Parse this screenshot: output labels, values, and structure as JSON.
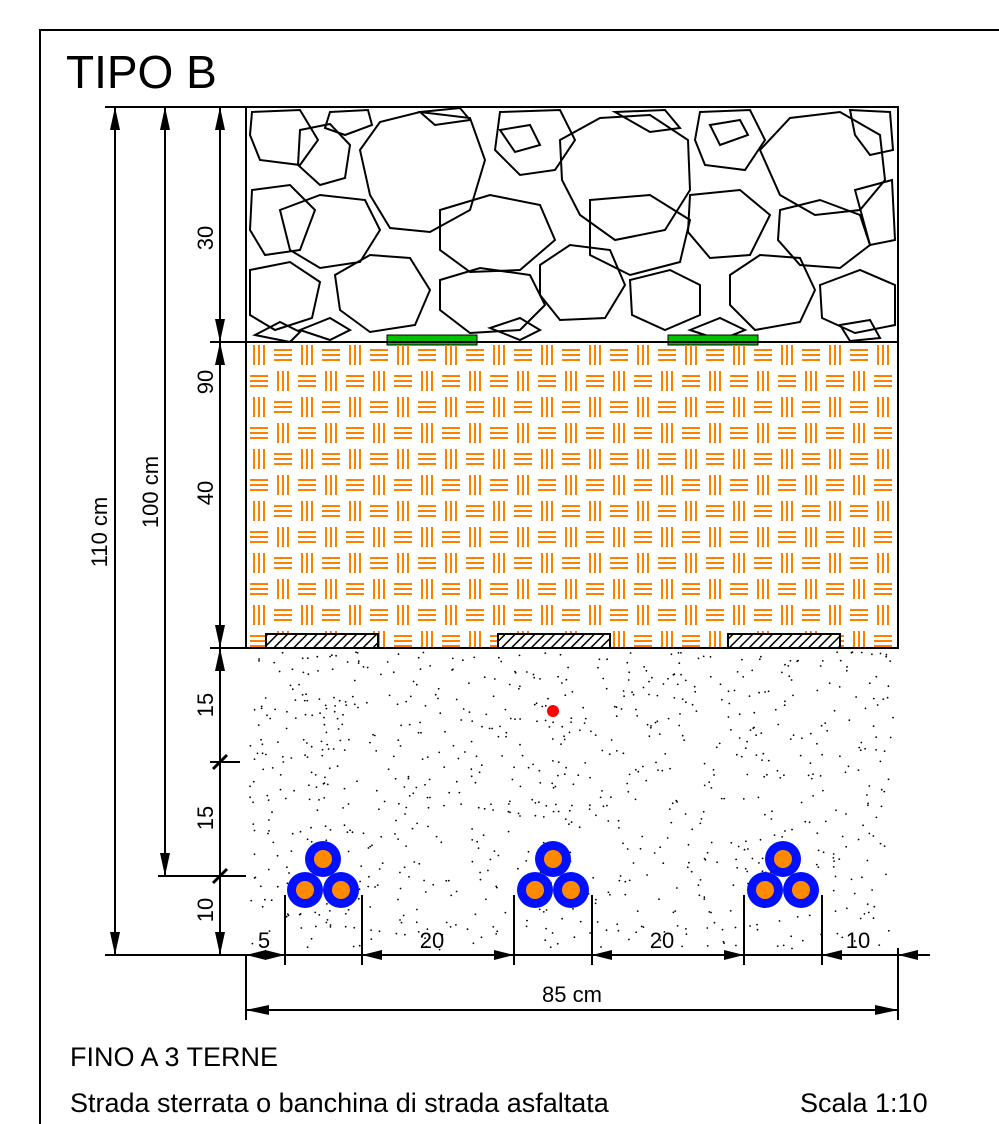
{
  "title": "TIPO B",
  "layers": [
    {
      "name": "pavimentazione-pietrame",
      "thickness": "30"
    },
    {
      "name": "riempimento",
      "thickness": "40"
    },
    {
      "name": "sabbia",
      "thickness": "15"
    },
    {
      "name": "sabbia",
      "thickness": "15"
    },
    {
      "name": "sabbia",
      "thickness": "10"
    }
  ],
  "dimensions": {
    "total_110": "110 cm",
    "total_100": "100 cm",
    "depth_90": "90",
    "layer_30": "30",
    "layer_40": "40",
    "layer_15a": "15",
    "layer_15b": "15",
    "layer_10": "10",
    "h_5": "5",
    "h_20a": "20",
    "h_20b": "20",
    "h_10": "10",
    "width_total": "85 cm"
  },
  "cable_groups": [
    {
      "name": "terna-1"
    },
    {
      "name": "terna-2"
    },
    {
      "name": "terna-3"
    }
  ],
  "footer": {
    "line1": "FINO A 3 TERNE",
    "line2": "Strada sterrata o banchina di strada asfaltata",
    "scale": "Scala 1:10"
  },
  "colors": {
    "fill_orange": "#ff8000",
    "tape_green": "#00c000",
    "cable_blue": "#0010ff",
    "cable_core": "#ff8a00",
    "marker_red": "#ff0000"
  }
}
